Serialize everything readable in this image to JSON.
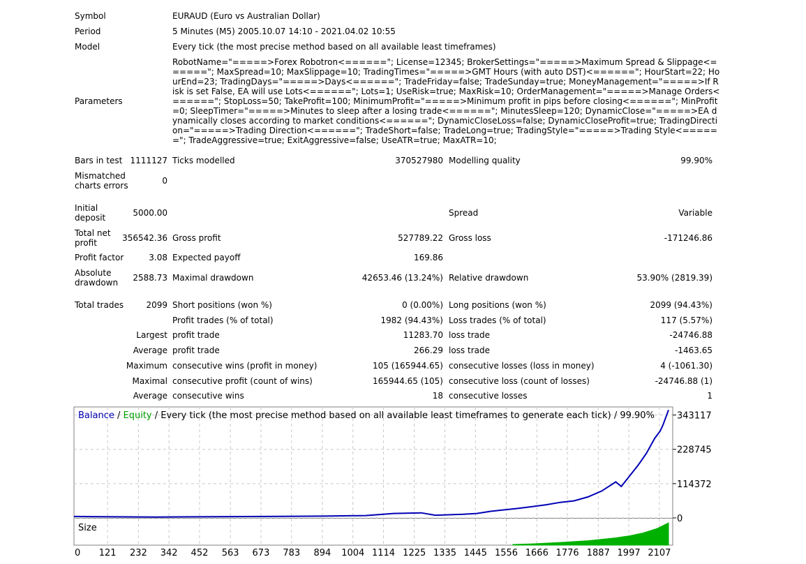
{
  "header": {
    "symbol_label": "Symbol",
    "symbol_value": "EURAUD (Euro vs Australian Dollar)",
    "period_label": "Period",
    "period_value": "5 Minutes (M5) 2005.10.07 14:10 - 2021.04.02 10:55",
    "model_label": "Model",
    "model_value": "Every tick (the most precise method based on all available least timeframes)",
    "parameters_label": "Parameters",
    "parameters_value": "RobotName=\"=====>Forex Robotron<======\"; License=12345; BrokerSettings=\"=====>Maximum Spread & Slippage<======\"; MaxSpread=10; MaxSlippage=10; TradingTimes=\"=====>GMT Hours (with auto DST)<======\"; HourStart=22; HourEnd=23; TradingDays=\"=====>Days<======\"; TradeFriday=false; TradeSunday=true; MoneyManagement=\"=====>If Risk is set False, EA will use Lots<======\"; Lots=1; UseRisk=true; MaxRisk=10; OrderManagement=\"=====>Manage Orders<======\"; StopLoss=50; TakeProfit=100; MinimumProfit=\"=====>Minimum profit in pips before closing<======\"; MinProfit=0; SleepTimer=\"=====>Minutes to sleep after a losing trade<======\"; MinutesSleep=120; DynamicClose=\"=====>EA dynamically closes according to market conditions<======\"; DynamicCloseLoss=false; DynamicCloseProfit=true; TradingDirection=\"=====>Trading Direction<======\"; TradeShort=false; TradeLong=true; TradingStyle=\"=====>Trading Style<======\"; TradeAggressive=true; ExitAggressive=false; UseATR=true; MaxATR=10;"
  },
  "stats": {
    "bars_label": "Bars in test",
    "bars_value": "1111127",
    "ticks_label": "Ticks modelled",
    "ticks_value": "370527980",
    "quality_label": "Modelling quality",
    "quality_value": "99.90%",
    "mismatch_label_1": "Mismatched",
    "mismatch_label_2": "charts errors",
    "mismatch_value": "0",
    "deposit_label_1": "Initial",
    "deposit_label_2": "deposit",
    "deposit_value": "5000.00",
    "spread_label": "Spread",
    "spread_value": "Variable",
    "netprofit_label_1": "Total net",
    "netprofit_label_2": "profit",
    "netprofit_value": "356542.36",
    "grossprofit_label": "Gross profit",
    "grossprofit_value": "527789.22",
    "grossloss_label": "Gross loss",
    "grossloss_value": "-171246.86",
    "pf_label": "Profit factor",
    "pf_value": "3.08",
    "payoff_label": "Expected payoff",
    "payoff_value": "169.86",
    "absdd_label_1": "Absolute",
    "absdd_label_2": "drawdown",
    "absdd_value": "2588.73",
    "maxdd_label": "Maximal drawdown",
    "maxdd_value": "42653.46 (13.24%)",
    "reldd_label": "Relative drawdown",
    "reldd_value": "53.90% (2819.39)",
    "trades_label": "Total trades",
    "trades_value": "2099",
    "short_label": "Short positions (won %)",
    "short_value": "0 (0.00%)",
    "long_label": "Long positions (won %)",
    "long_value": "2099 (94.43%)",
    "pt_label": "Profit trades (% of total)",
    "pt_value": "1982 (94.43%)",
    "lt_label": "Loss trades (% of total)",
    "lt_value": "117 (5.57%)",
    "largest_label": "Largest",
    "largest_profit_label": "profit trade",
    "largest_profit_value": "11283.70",
    "largest_loss_label": "loss trade",
    "largest_loss_value": "-24746.88",
    "average_label": "Average",
    "average_profit_label": "profit trade",
    "average_profit_value": "266.29",
    "average_loss_label": "loss trade",
    "average_loss_value": "-1463.65",
    "maximum_label": "Maximum",
    "max_wins_label": "consecutive wins (profit in money)",
    "max_wins_value": "105 (165944.65)",
    "max_losses_label": "consecutive losses (loss in money)",
    "max_losses_value": "4 (-1061.30)",
    "maximal_label": "Maximal",
    "maximal_profit_label": "consecutive profit (count of wins)",
    "maximal_profit_value": "165944.65 (105)",
    "maximal_loss_label": "consecutive loss (count of losses)",
    "maximal_loss_value": "-24746.88 (1)",
    "avg2_label": "Average",
    "avg_wins_label": "consecutive wins",
    "avg_wins_value": "18",
    "avg_losses_label": "consecutive losses",
    "avg_losses_value": "1"
  },
  "chart_data": {
    "type": "line",
    "title_parts": [
      "Balance",
      " / ",
      "Equity",
      " / Every tick (the most precise method based on all available least timeframes to generate each tick) / 99.90%"
    ],
    "colors": {
      "balance": "#0000b4",
      "equity": "#00a000",
      "size": "#00b000",
      "title_text": "#000000",
      "grid": "#c8c8c8",
      "frame": "#808080"
    },
    "y_ticks": [
      0,
      114372,
      228745,
      343117
    ],
    "y_tick_labels": [
      "0",
      "114372",
      "228745",
      "343117"
    ],
    "ylim": [
      0,
      370000
    ],
    "xlim": [
      0,
      2155
    ],
    "x_ticks": [
      0,
      121,
      232,
      342,
      452,
      563,
      673,
      783,
      894,
      1004,
      1114,
      1225,
      1335,
      1445,
      1556,
      1666,
      1776,
      1887,
      1997,
      2107
    ],
    "x_tick_labels": [
      "0",
      "121",
      "232",
      "342",
      "452",
      "563",
      "673",
      "783",
      "894",
      "1004",
      "1114",
      "1225",
      "1335",
      "1445",
      "1556",
      "1666",
      "1776",
      "1887",
      "1997",
      "2107"
    ],
    "size_label": "Size",
    "series": [
      {
        "name": "Balance",
        "x": [
          0,
          100,
          300,
          500,
          700,
          900,
          1050,
          1150,
          1250,
          1300,
          1400,
          1450,
          1500,
          1550,
          1600,
          1650,
          1700,
          1750,
          1800,
          1850,
          1900,
          1950,
          1970,
          2000,
          2030,
          2060,
          2090,
          2110,
          2120,
          2140
        ],
        "y": [
          5000,
          4000,
          3000,
          4000,
          5000,
          6000,
          8000,
          15000,
          17000,
          9000,
          12000,
          15000,
          22000,
          27000,
          32000,
          38000,
          44000,
          52000,
          57000,
          70000,
          90000,
          120000,
          105000,
          140000,
          175000,
          215000,
          265000,
          290000,
          310000,
          360000
        ]
      }
    ],
    "size_series": {
      "x": [
        1580,
        1650,
        1700,
        1750,
        1800,
        1850,
        1900,
        1950,
        2000,
        2050,
        2100,
        2140
      ],
      "y": [
        0.03,
        0.06,
        0.09,
        0.12,
        0.16,
        0.2,
        0.26,
        0.33,
        0.42,
        0.55,
        0.75,
        1.0
      ]
    }
  }
}
